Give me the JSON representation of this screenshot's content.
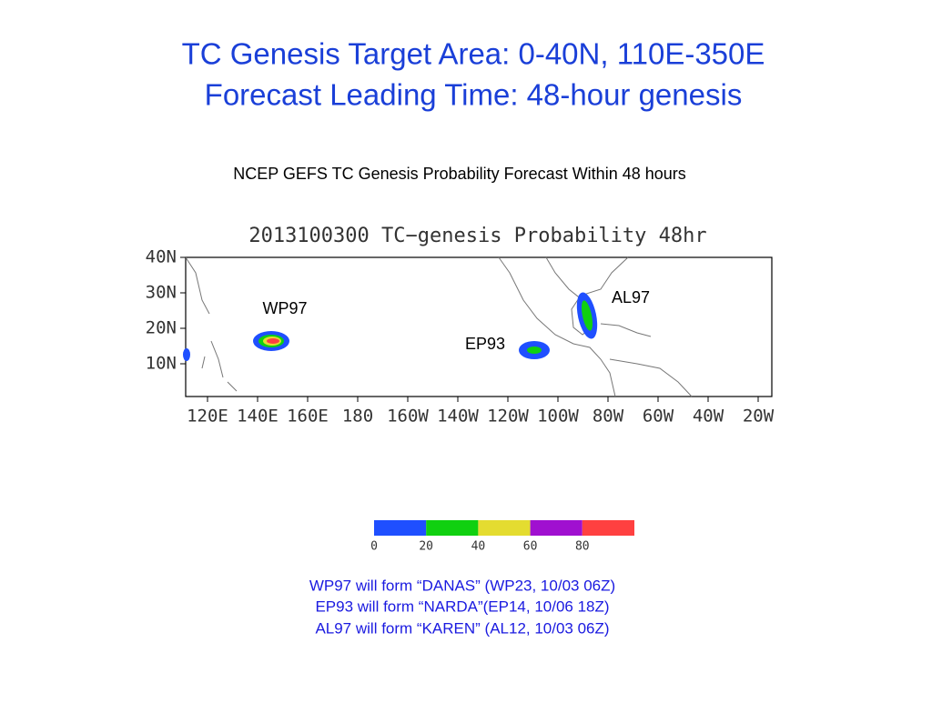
{
  "header": {
    "title_lines": [
      "TC Genesis Target Area: 0-40N, 110E-350E",
      "Forecast Leading Time: 48-hour genesis"
    ],
    "subtitle": "NCEP GEFS TC Genesis Probability Forecast Within 48 hours"
  },
  "map": {
    "title": "2013100300 TC−genesis Probability 48hr",
    "lat_labels": [
      "40N",
      "30N",
      "20N",
      "10N"
    ],
    "lon_labels": [
      "120E",
      "140E",
      "160E",
      "180",
      "160W",
      "140W",
      "120W",
      "100W",
      "80W",
      "60W",
      "40W",
      "20W"
    ],
    "storms": [
      "WP97",
      "EP93",
      "AL97"
    ]
  },
  "colorbar": {
    "colors": [
      "#1f4fff",
      "#10d010",
      "#e4dc30",
      "#a010d0",
      "#ff4040"
    ],
    "labels": [
      "0",
      "20",
      "40",
      "60",
      "80"
    ]
  },
  "notes": [
    "WP97 will form “DANAS” (WP23, 10/03 06Z)",
    "EP93 will form “NARDA”(EP14, 10/06 18Z)",
    "AL97 will form “KAREN” (AL12,  10/03 06Z)"
  ]
}
